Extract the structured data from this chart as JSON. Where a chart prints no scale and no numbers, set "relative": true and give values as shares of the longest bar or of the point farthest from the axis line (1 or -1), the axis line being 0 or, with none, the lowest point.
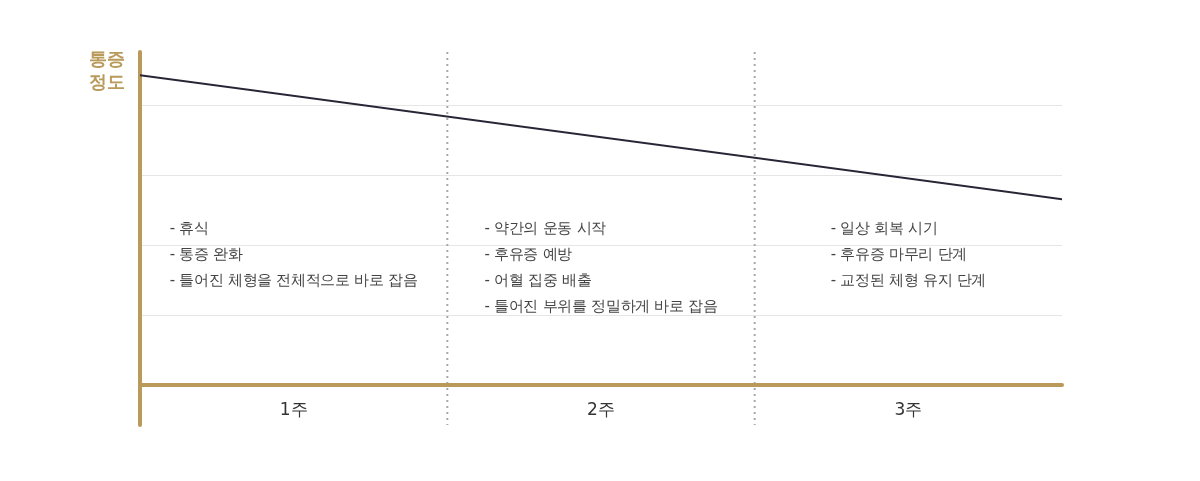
{
  "chart_data": {
    "type": "line",
    "ylabel": "통증 정도",
    "relative": true,
    "x": [
      0,
      3
    ],
    "xlim": [
      0,
      3
    ],
    "xticks": [
      {
        "value": 0.5,
        "label": "1주"
      },
      {
        "value": 1.5,
        "label": "2주"
      },
      {
        "value": 2.5,
        "label": "3주"
      }
    ],
    "series": [
      {
        "color": "#262636",
        "values": [
          1,
          0.6
        ]
      }
    ],
    "ref_lines": [
      {
        "axis": "x",
        "value": 1,
        "color": "#a8a8a8",
        "line_style": "dotted"
      },
      {
        "axis": "x",
        "value": 2,
        "color": "#a8a8a8",
        "line_style": "dotted"
      }
    ],
    "grid": "y",
    "annotations": [
      "- 휴식\n- 통증 완화\n- 틀어진 체형을 전체적으로 바로 잡음",
      "- 약간의 운동 시작\n- 후유증 예방\n- 어혈 집중 배출\n- 틀어진 부위를 정밀하게 바로 잡음",
      "- 일상 회복 시기\n- 후유증 마무리 단계\n- 교정된 체형 유지 단계"
    ]
  }
}
